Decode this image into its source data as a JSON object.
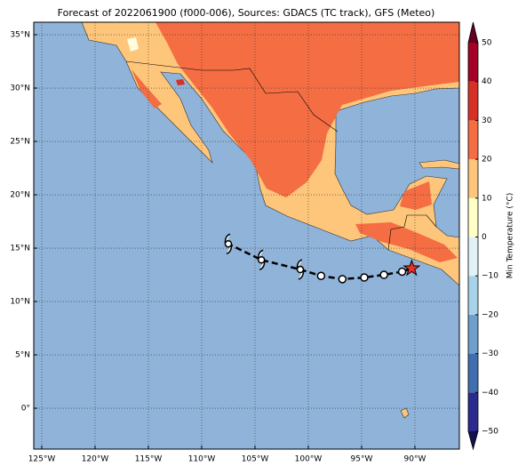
{
  "chart_data": {
    "type": "map",
    "title": "Forecast of 2022061900 (f000-006), Sources: GDACS (TC track), GFS (Meteo)",
    "xlim": [
      -125.75,
      -85.83
    ],
    "ylim": [
      -3.83,
      36.17
    ],
    "xticks": [
      {
        "value": -125,
        "label": "125°W"
      },
      {
        "value": -120,
        "label": "120°W"
      },
      {
        "value": -115,
        "label": "115°W"
      },
      {
        "value": -110,
        "label": "110°W"
      },
      {
        "value": -105,
        "label": "105°W"
      },
      {
        "value": -100,
        "label": "100°W"
      },
      {
        "value": -95,
        "label": "95°W"
      },
      {
        "value": -90,
        "label": "90°W"
      }
    ],
    "yticks": [
      {
        "value": 0,
        "label": "0°"
      },
      {
        "value": 5,
        "label": "5°N"
      },
      {
        "value": 10,
        "label": "10°N"
      },
      {
        "value": 15,
        "label": "15°N"
      },
      {
        "value": 20,
        "label": "20°N"
      },
      {
        "value": 25,
        "label": "25°N"
      },
      {
        "value": 30,
        "label": "30°N"
      },
      {
        "value": 35,
        "label": "35°N"
      }
    ],
    "grid": true,
    "ocean_color": "#8fb3d9",
    "track": {
      "lon": [
        -90.3,
        -91.2,
        -92.9,
        -94.75,
        -96.8,
        -98.8,
        -100.75,
        -104.4,
        -107.5
      ],
      "lat": [
        13.1,
        12.8,
        12.5,
        12.25,
        12.1,
        12.4,
        13.0,
        13.9,
        15.4
      ],
      "markers": [
        "star",
        "circle",
        "circle",
        "circle",
        "circle",
        "circle",
        "cyclone",
        "cyclone",
        "cyclone"
      ],
      "color": "#000000",
      "star_color": "#e8302a"
    },
    "colorbar": {
      "label": "Min Temperature (°C)",
      "lim": [
        -50,
        50
      ],
      "ticks": [
        {
          "value": -50,
          "label": "−50"
        },
        {
          "value": -40,
          "label": "−40"
        },
        {
          "value": -30,
          "label": "−30"
        },
        {
          "value": -20,
          "label": "−20"
        },
        {
          "value": -10,
          "label": "−10"
        },
        0,
        10,
        20,
        30,
        40,
        50
      ],
      "colors": [
        "#2b2b8f",
        "#3f6fb0",
        "#6f9fcc",
        "#a7d3e8",
        "#e1f2f7",
        "#ffffc6",
        "#fec67a",
        "#f46d43",
        "#d73027",
        "#a50026"
      ],
      "under_color": "#121250",
      "over_color": "#67001f"
    }
  }
}
